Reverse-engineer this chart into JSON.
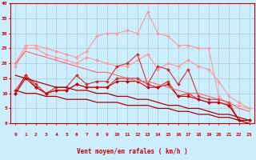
{
  "xlabel": "Vent moyen/en rafales ( km/h )",
  "bg_color": "#cceeff",
  "grid_color": "#aacccc",
  "xlim": [
    -0.5,
    23.5
  ],
  "ylim": [
    0,
    40
  ],
  "yticks": [
    0,
    5,
    10,
    15,
    20,
    25,
    30,
    35,
    40
  ],
  "xticks": [
    0,
    1,
    2,
    3,
    4,
    5,
    6,
    7,
    8,
    9,
    10,
    11,
    12,
    13,
    14,
    15,
    16,
    17,
    18,
    19,
    20,
    21,
    22,
    23
  ],
  "series": [
    {
      "color": "#ff9999",
      "linewidth": 0.8,
      "marker": "D",
      "markersize": 2.0,
      "y": [
        20,
        26,
        26,
        25,
        24,
        23,
        22,
        24,
        29,
        30,
        30,
        31,
        30,
        37,
        30,
        29,
        26,
        26,
        25,
        25,
        9,
        6,
        6,
        5
      ]
    },
    {
      "color": "#ff9999",
      "linewidth": 0.8,
      "marker": "D",
      "markersize": 2.0,
      "y": [
        19,
        25,
        25,
        23,
        22,
        21,
        20,
        22,
        21,
        20,
        19,
        19,
        21,
        23,
        18,
        20,
        19,
        21,
        19,
        18,
        14,
        9,
        7,
        5
      ]
    },
    {
      "color": "#cc3333",
      "linewidth": 0.8,
      "marker": "D",
      "markersize": 2.0,
      "y": [
        11,
        16,
        13,
        10,
        12,
        12,
        16,
        13,
        14,
        14,
        19,
        20,
        23,
        13,
        19,
        18,
        13,
        18,
        9,
        8,
        8,
        7,
        1,
        1
      ]
    },
    {
      "color": "#cc3333",
      "linewidth": 0.8,
      "marker": "D",
      "markersize": 2.0,
      "y": [
        10,
        16,
        12,
        10,
        11,
        11,
        13,
        12,
        12,
        12,
        15,
        15,
        15,
        13,
        12,
        14,
        9,
        10,
        8,
        7,
        7,
        6,
        1,
        1
      ]
    },
    {
      "color": "#cc0000",
      "linewidth": 0.8,
      "marker": "D",
      "markersize": 2.0,
      "linestyle": "-",
      "y": [
        10,
        15,
        12,
        10,
        11,
        11,
        13,
        12,
        12,
        12,
        14,
        14,
        14,
        12,
        12,
        13,
        9,
        9,
        8,
        7,
        7,
        6,
        1,
        1
      ]
    },
    {
      "color": "#aa0000",
      "linewidth": 0.9,
      "marker": null,
      "linestyle": "-",
      "y": [
        16,
        15,
        14,
        13,
        12,
        12,
        11,
        11,
        10,
        10,
        9,
        9,
        8,
        8,
        7,
        6,
        6,
        5,
        5,
        4,
        3,
        3,
        2,
        1
      ]
    },
    {
      "color": "#aa0000",
      "linewidth": 0.9,
      "marker": null,
      "linestyle": "-",
      "y": [
        11,
        10,
        10,
        9,
        9,
        8,
        8,
        8,
        7,
        7,
        7,
        6,
        6,
        6,
        5,
        5,
        4,
        4,
        3,
        3,
        2,
        2,
        1,
        0
      ]
    },
    {
      "color": "#ff6666",
      "linewidth": 0.8,
      "marker": null,
      "linestyle": "-",
      "y": [
        20,
        24,
        23,
        22,
        21,
        20,
        19,
        18,
        17,
        17,
        16,
        15,
        14,
        14,
        13,
        12,
        11,
        10,
        10,
        9,
        8,
        7,
        5,
        4
      ]
    }
  ],
  "arrow_angles": [
    0,
    10,
    45,
    45,
    45,
    45,
    45,
    45,
    45,
    45,
    45,
    45,
    45,
    45,
    45,
    0,
    0,
    90,
    90,
    45,
    0,
    0,
    0,
    0
  ],
  "arrow_color": "#cc0000"
}
